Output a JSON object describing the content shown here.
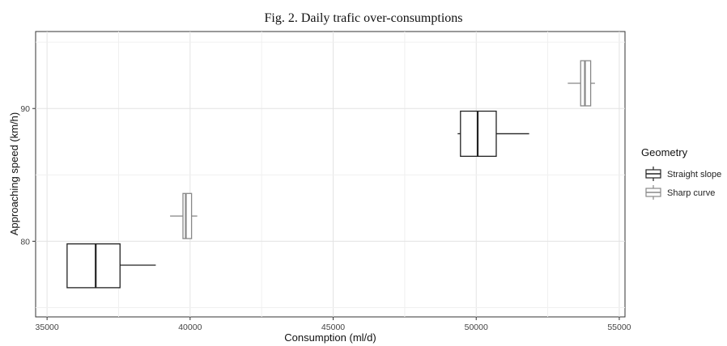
{
  "page": {
    "title": "Fig. 2. Daily trafic over-consumptions"
  },
  "chart_data": {
    "type": "boxplot",
    "orientation": "horizontal",
    "title": "Fig. 2. Daily trafic over-consumptions",
    "xlabel": "Consumption (ml/d)",
    "ylabel": "Approaching speed (km/h)",
    "xlim": [
      34600,
      55200
    ],
    "ylim": [
      74.3,
      95.8
    ],
    "x_ticks": [
      35000,
      40000,
      45000,
      50000,
      55000
    ],
    "x_tick_labels": [
      "35000",
      "40000",
      "45000",
      "50000",
      "55000"
    ],
    "y_ticks": [
      80,
      90
    ],
    "y_tick_labels": [
      "80",
      "90"
    ],
    "grid": true,
    "legend": {
      "title": "Geometry",
      "position": "right",
      "entries": [
        {
          "label": "Straight slope",
          "color": "#222222"
        },
        {
          "label": "Sharp curve",
          "color": "#888888"
        }
      ]
    },
    "boxes": [
      {
        "group": "Straight slope",
        "y": 78.2,
        "y_low": 76.5,
        "y_high": 79.8,
        "min": 35700,
        "q1": 35700,
        "median": 36700,
        "q3": 37550,
        "max": 38800,
        "color": "#222222"
      },
      {
        "group": "Sharp curve",
        "y": 81.9,
        "y_low": 80.2,
        "y_high": 83.6,
        "min": 39300,
        "q1": 39750,
        "median": 39850,
        "q3": 40050,
        "max": 40250,
        "color": "#888888"
      },
      {
        "group": "Straight slope",
        "y": 88.1,
        "y_low": 86.4,
        "y_high": 89.8,
        "min": 49350,
        "q1": 49450,
        "median": 50050,
        "q3": 50700,
        "max": 51850,
        "color": "#222222"
      },
      {
        "group": "Sharp curve",
        "y": 91.9,
        "y_low": 90.2,
        "y_high": 93.6,
        "min": 53200,
        "q1": 53650,
        "median": 53800,
        "q3": 54000,
        "max": 54150,
        "color": "#888888"
      }
    ]
  }
}
